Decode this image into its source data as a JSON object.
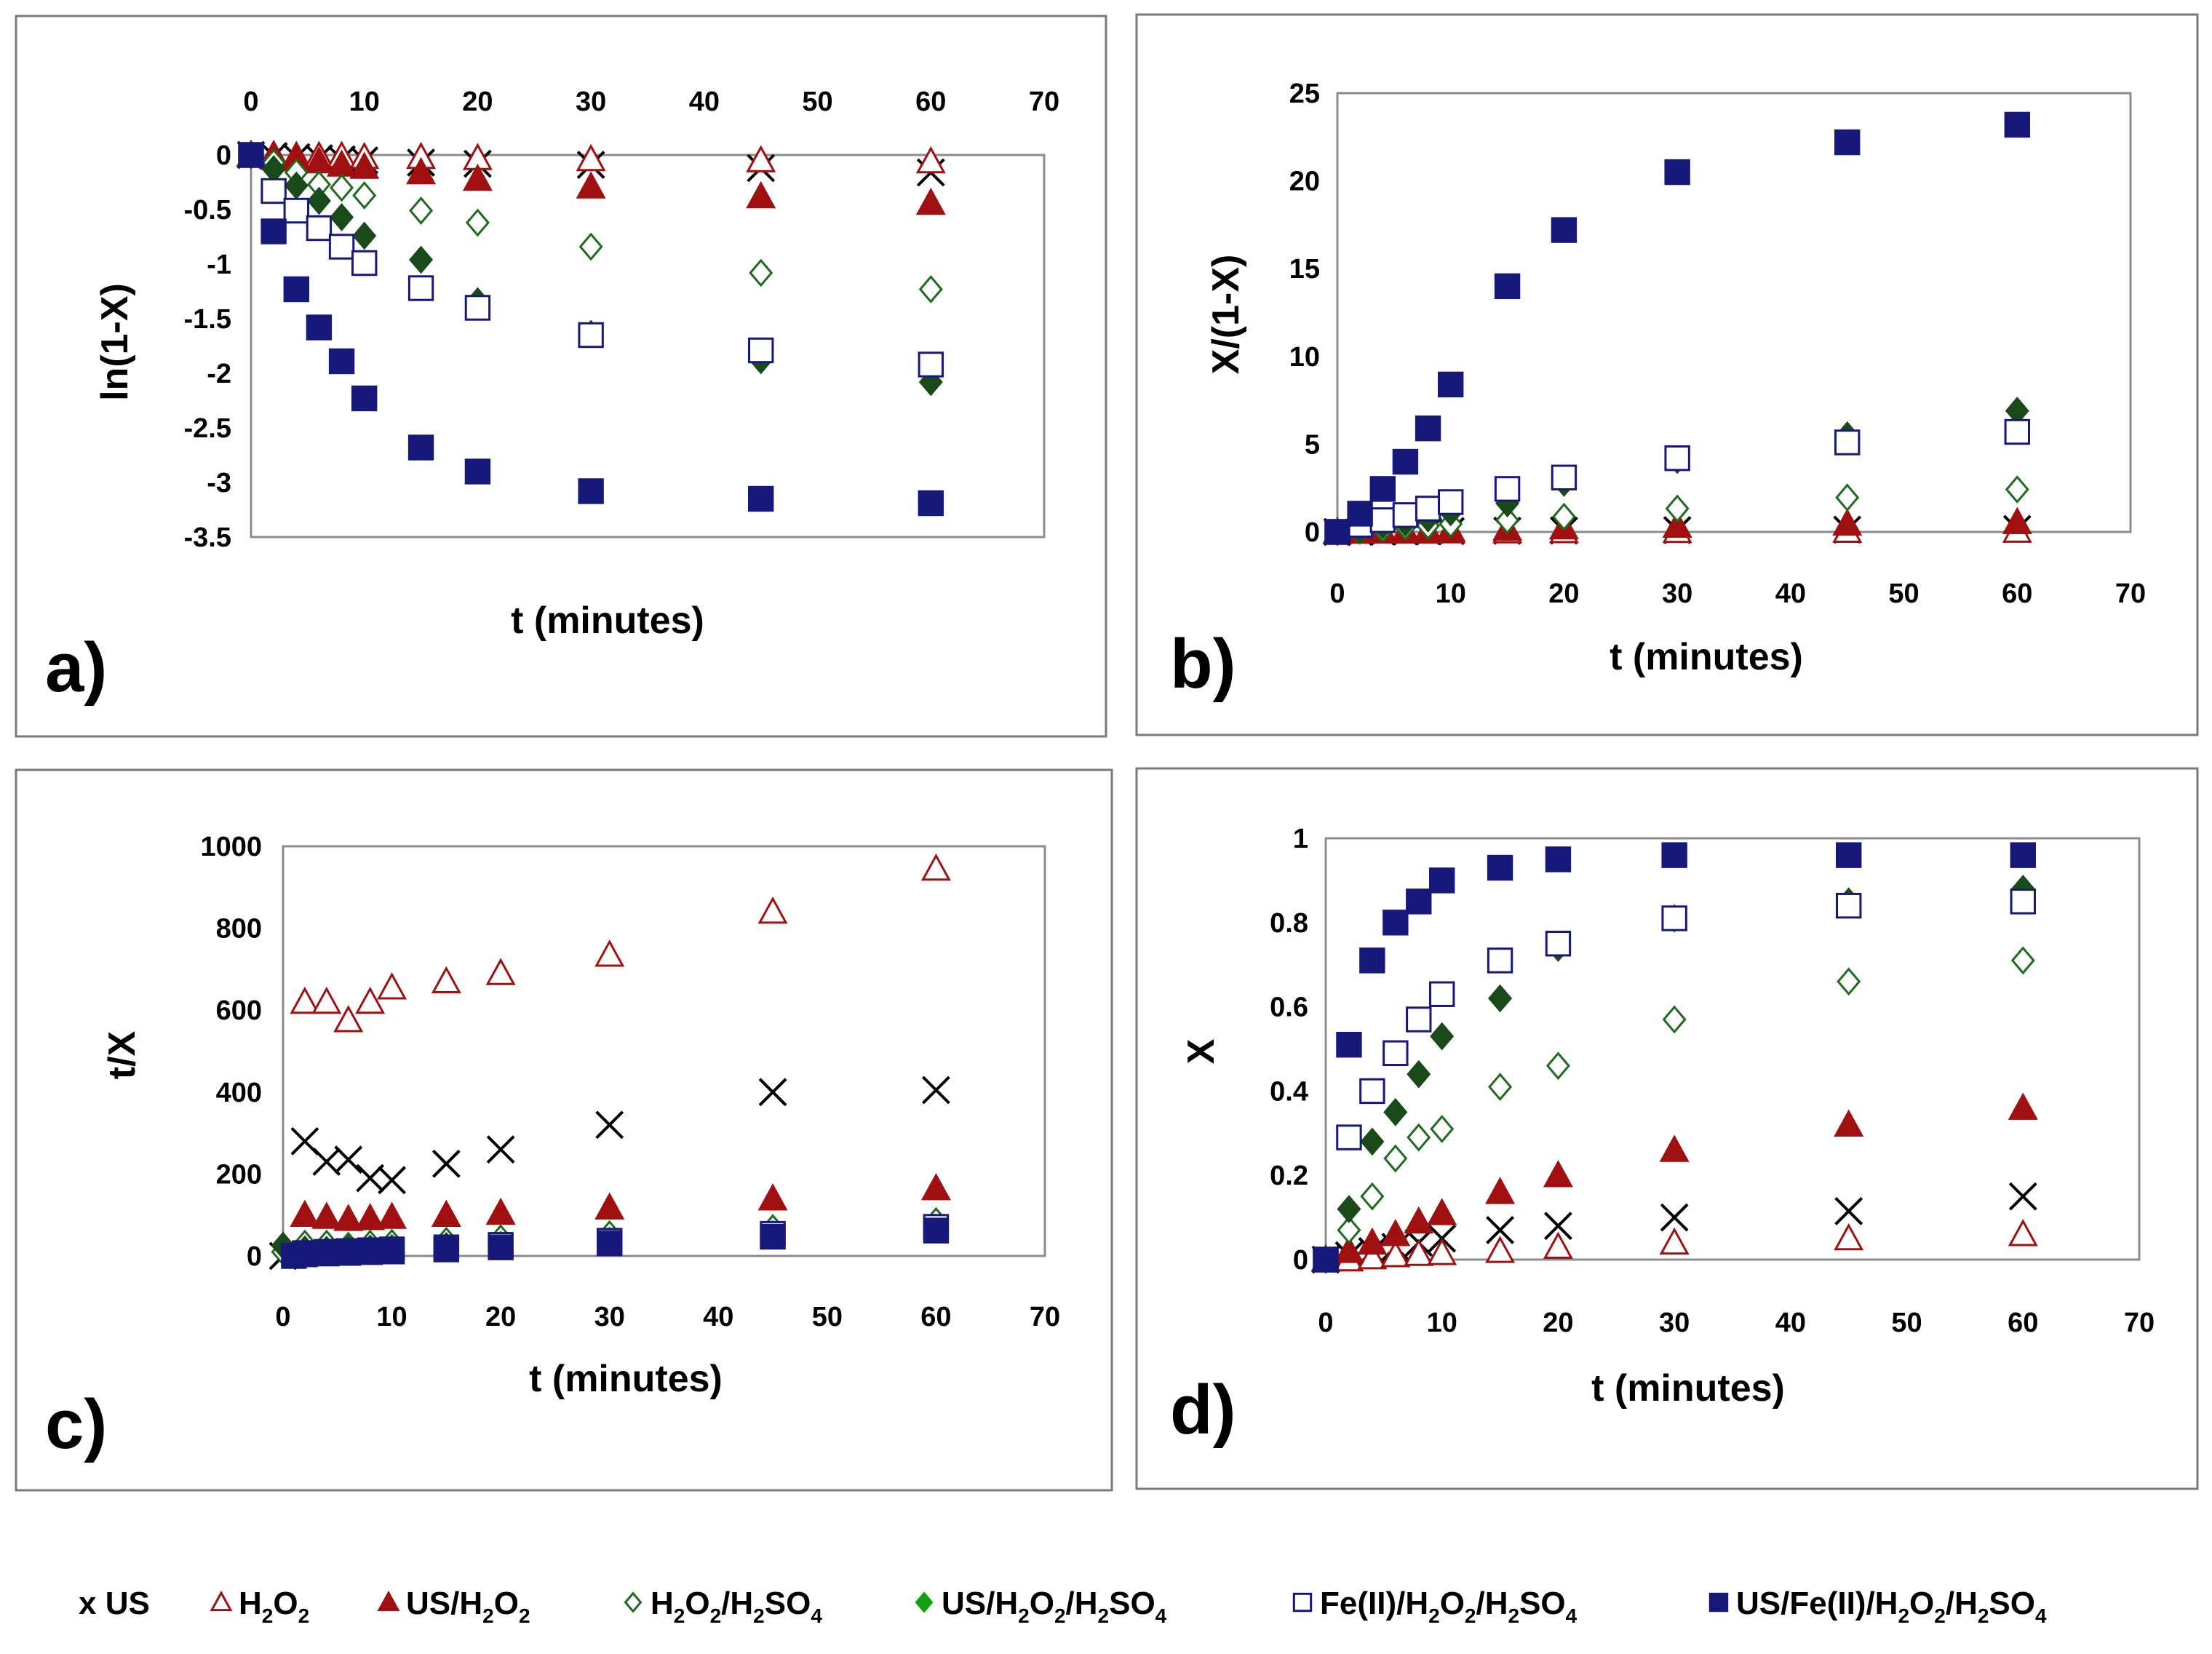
{
  "chart_data": [
    {
      "panel": "a)",
      "type": "scatter",
      "xlabel": "t (minutes)",
      "ylabel": "ln(1-X)",
      "xlim": [
        0,
        70
      ],
      "ylim": [
        -3.5,
        0
      ],
      "x_ticks": [
        0,
        10,
        20,
        30,
        40,
        50,
        60,
        70
      ],
      "y_ticks": [
        0,
        -0.5,
        -1,
        -1.5,
        -2,
        -2.5,
        -3,
        -3.5
      ],
      "x_axis_position": "top",
      "series": [
        {
          "key": "us",
          "x": [
            0,
            2,
            4,
            6,
            8,
            10,
            15,
            20,
            30,
            45,
            60
          ],
          "y": [
            0,
            -0.01,
            -0.02,
            -0.03,
            -0.04,
            -0.05,
            -0.07,
            -0.08,
            -0.09,
            -0.12,
            -0.16
          ]
        },
        {
          "key": "h2o2",
          "x": [
            0,
            2,
            4,
            6,
            8,
            10,
            15,
            20,
            30,
            45,
            60
          ],
          "y": [
            0,
            0,
            -0.01,
            -0.01,
            -0.01,
            -0.02,
            -0.02,
            -0.03,
            -0.04,
            -0.05,
            -0.06
          ]
        },
        {
          "key": "us_h2o2",
          "x": [
            0,
            2,
            4,
            6,
            8,
            10,
            15,
            20,
            30,
            45,
            60
          ],
          "y": [
            0,
            -0.02,
            -0.04,
            -0.06,
            -0.09,
            -0.11,
            -0.16,
            -0.22,
            -0.29,
            -0.38,
            -0.44
          ]
        },
        {
          "key": "h2o2_h2so4",
          "x": [
            0,
            2,
            4,
            6,
            8,
            10,
            15,
            20,
            30,
            45,
            60
          ],
          "y": [
            0,
            -0.07,
            -0.16,
            -0.27,
            -0.3,
            -0.37,
            -0.51,
            -0.62,
            -0.84,
            -1.08,
            -1.23
          ]
        },
        {
          "key": "us_h2o2_h2so4",
          "x": [
            0,
            2,
            4,
            6,
            8,
            10,
            15,
            20,
            30,
            45,
            60
          ],
          "y": [
            0,
            -0.13,
            -0.28,
            -0.42,
            -0.57,
            -0.74,
            -0.96,
            -1.34,
            -1.64,
            -1.88,
            -2.08
          ]
        },
        {
          "key": "fe_h2o2_h2so4",
          "x": [
            0,
            2,
            4,
            6,
            8,
            10,
            15,
            20,
            30,
            45,
            60
          ],
          "y": [
            0,
            -0.33,
            -0.51,
            -0.67,
            -0.84,
            -0.99,
            -1.22,
            -1.4,
            -1.65,
            -1.79,
            -1.92
          ]
        },
        {
          "key": "us_fe_h2o2_h2so4",
          "x": [
            0,
            2,
            4,
            6,
            8,
            10,
            15,
            20,
            30,
            45,
            60
          ],
          "y": [
            0,
            -0.7,
            -1.23,
            -1.58,
            -1.89,
            -2.23,
            -2.68,
            -2.9,
            -3.08,
            -3.15,
            -3.19
          ]
        }
      ]
    },
    {
      "panel": "b)",
      "type": "scatter",
      "xlabel": "t (minutes)",
      "ylabel": "X/(1-X)",
      "xlim": [
        0,
        70
      ],
      "ylim": [
        0,
        25
      ],
      "x_ticks": [
        0,
        10,
        20,
        30,
        40,
        50,
        60,
        70
      ],
      "y_ticks": [
        0,
        5,
        10,
        15,
        20,
        25
      ],
      "x_axis_position": "bottom",
      "series": [
        {
          "key": "us",
          "x": [
            0,
            2,
            4,
            6,
            8,
            10,
            15,
            20,
            30,
            45,
            60
          ],
          "y": [
            0,
            0.01,
            0.02,
            0.03,
            0.04,
            0.05,
            0.07,
            0.08,
            0.1,
            0.13,
            0.17
          ]
        },
        {
          "key": "h2o2",
          "x": [
            0,
            2,
            4,
            6,
            8,
            10,
            15,
            20,
            30,
            45,
            60
          ],
          "y": [
            0,
            0,
            0.01,
            0.01,
            0.01,
            0.02,
            0.02,
            0.03,
            0.04,
            0.05,
            0.06
          ]
        },
        {
          "key": "us_h2o2",
          "x": [
            0,
            2,
            4,
            6,
            8,
            10,
            15,
            20,
            30,
            45,
            60
          ],
          "y": [
            0,
            0.02,
            0.04,
            0.06,
            0.09,
            0.12,
            0.17,
            0.25,
            0.34,
            0.46,
            0.55
          ]
        },
        {
          "key": "h2o2_h2so4",
          "x": [
            0,
            2,
            4,
            6,
            8,
            10,
            15,
            20,
            30,
            45,
            60
          ],
          "y": [
            0,
            0.07,
            0.17,
            0.31,
            0.35,
            0.45,
            0.67,
            0.86,
            1.33,
            1.96,
            2.42
          ]
        },
        {
          "key": "us_h2o2_h2so4",
          "x": [
            0,
            2,
            4,
            6,
            8,
            10,
            15,
            20,
            30,
            45,
            60
          ],
          "y": [
            0,
            0.14,
            0.38,
            0.53,
            0.77,
            1.12,
            1.63,
            2.8,
            4.1,
            5.5,
            6.9
          ]
        },
        {
          "key": "fe_h2o2_h2so4",
          "x": [
            0,
            2,
            4,
            6,
            8,
            10,
            15,
            20,
            30,
            45,
            60
          ],
          "y": [
            0,
            0.4,
            0.67,
            0.96,
            1.33,
            1.7,
            2.45,
            3.1,
            4.2,
            5.1,
            5.7
          ]
        },
        {
          "key": "us_fe_h2o2_h2so4",
          "x": [
            0,
            2,
            4,
            6,
            8,
            10,
            15,
            20,
            30,
            45,
            60
          ],
          "y": [
            0,
            1.04,
            2.45,
            4.0,
            5.9,
            8.4,
            14.0,
            17.2,
            20.5,
            22.2,
            23.2
          ]
        }
      ]
    },
    {
      "panel": "c)",
      "type": "scatter",
      "xlabel": "t (minutes)",
      "ylabel": "t/X",
      "xlim": [
        0,
        70
      ],
      "ylim": [
        0,
        1000
      ],
      "x_ticks": [
        0,
        10,
        20,
        30,
        40,
        50,
        60,
        70
      ],
      "y_ticks": [
        0,
        200,
        400,
        600,
        800,
        1000
      ],
      "x_axis_position": "bottom",
      "series": [
        {
          "key": "us",
          "x": [
            0,
            2,
            4,
            6,
            8,
            10,
            15,
            20,
            30,
            45,
            60
          ],
          "y": [
            0,
            280,
            230,
            235,
            190,
            185,
            225,
            260,
            320,
            400,
            405
          ]
        },
        {
          "key": "h2o2",
          "x": [
            2,
            4,
            6,
            8,
            10,
            15,
            20,
            30,
            45,
            60
          ],
          "y": [
            620,
            620,
            575,
            620,
            655,
            670,
            690,
            735,
            840,
            945
          ]
        },
        {
          "key": "us_h2o2",
          "x": [
            2,
            4,
            6,
            8,
            10,
            15,
            20,
            30,
            45,
            60
          ],
          "y": [
            100,
            95,
            90,
            92,
            95,
            100,
            105,
            118,
            140,
            165
          ]
        },
        {
          "key": "h2o2_h2so4",
          "x": [
            0,
            2,
            4,
            6,
            8,
            10,
            15,
            20,
            30,
            45,
            60
          ],
          "y": [
            10,
            30,
            30,
            25,
            30,
            32,
            37,
            43,
            53,
            68,
            85
          ]
        },
        {
          "key": "us_h2o2_h2so4",
          "x": [
            0,
            2,
            4,
            6,
            8,
            10,
            15,
            20,
            30,
            45,
            60
          ],
          "y": [
            25,
            16,
            15,
            17,
            18,
            19,
            24,
            27,
            37,
            53,
            69
          ]
        },
        {
          "key": "fe_h2o2_h2so4",
          "x": [
            2,
            4,
            6,
            8,
            10,
            15,
            20,
            30,
            45,
            60
          ],
          "y": [
            7,
            10,
            12,
            14,
            16,
            21,
            27,
            37,
            54,
            71
          ]
        },
        {
          "key": "us_fe_h2o2_h2so4",
          "x": [
            1,
            2,
            4,
            6,
            8,
            10,
            15,
            20,
            30,
            45,
            60
          ],
          "y": [
            0,
            4,
            6,
            7.5,
            9.5,
            11,
            16,
            21,
            31,
            47,
            62
          ]
        }
      ]
    },
    {
      "panel": "d)",
      "type": "scatter",
      "xlabel": "t (minutes)",
      "ylabel": "X",
      "xlim": [
        0,
        70
      ],
      "ylim": [
        0,
        1
      ],
      "x_ticks": [
        0,
        10,
        20,
        30,
        40,
        50,
        60,
        70
      ],
      "y_ticks": [
        0,
        0.2,
        0.4,
        0.6,
        0.8,
        1
      ],
      "x_axis_position": "bottom",
      "series": [
        {
          "key": "us",
          "x": [
            0,
            2,
            4,
            6,
            8,
            10,
            15,
            20,
            30,
            45,
            60
          ],
          "y": [
            0,
            0.01,
            0.02,
            0.03,
            0.04,
            0.05,
            0.07,
            0.08,
            0.1,
            0.115,
            0.15
          ]
        },
        {
          "key": "h2o2",
          "x": [
            0,
            2,
            4,
            6,
            8,
            10,
            15,
            20,
            30,
            45,
            60
          ],
          "y": [
            0,
            0,
            0.005,
            0.01,
            0.013,
            0.015,
            0.02,
            0.03,
            0.04,
            0.05,
            0.06
          ]
        },
        {
          "key": "us_h2o2",
          "x": [
            0,
            2,
            4,
            6,
            8,
            10,
            15,
            20,
            30,
            45,
            60
          ],
          "y": [
            0,
            0.02,
            0.04,
            0.06,
            0.09,
            0.11,
            0.16,
            0.2,
            0.26,
            0.32,
            0.36
          ]
        },
        {
          "key": "h2o2_h2so4",
          "x": [
            0,
            2,
            4,
            6,
            8,
            10,
            15,
            20,
            30,
            45,
            60
          ],
          "y": [
            0,
            0.07,
            0.15,
            0.24,
            0.29,
            0.31,
            0.41,
            0.46,
            0.57,
            0.66,
            0.71
          ]
        },
        {
          "key": "us_h2o2_h2so4",
          "x": [
            0,
            2,
            4,
            6,
            8,
            10,
            15,
            20,
            30,
            45,
            60
          ],
          "y": [
            0,
            0.12,
            0.28,
            0.35,
            0.44,
            0.53,
            0.62,
            0.74,
            0.81,
            0.85,
            0.88
          ]
        },
        {
          "key": "fe_h2o2_h2so4",
          "x": [
            0,
            2,
            4,
            6,
            8,
            10,
            15,
            20,
            30,
            45,
            60
          ],
          "y": [
            0,
            0.29,
            0.4,
            0.49,
            0.57,
            0.63,
            0.71,
            0.75,
            0.81,
            0.84,
            0.85
          ]
        },
        {
          "key": "us_fe_h2o2_h2so4",
          "x": [
            0,
            2,
            4,
            6,
            8,
            10,
            15,
            20,
            30,
            45,
            60
          ],
          "y": [
            0,
            0.51,
            0.71,
            0.8,
            0.85,
            0.9,
            0.93,
            0.95,
            0.96,
            0.96,
            0.96
          ]
        }
      ]
    }
  ],
  "legend": [
    {
      "key": "us",
      "marker": "x",
      "color": "#000000",
      "label": "US"
    },
    {
      "key": "h2o2",
      "marker": "triangle-open",
      "color": "#a01010",
      "parts": [
        [
          "H",
          ""
        ],
        [
          "2",
          "sub"
        ],
        [
          "O",
          ""
        ],
        [
          "2",
          "sub"
        ]
      ]
    },
    {
      "key": "us_h2o2",
      "marker": "triangle-filled",
      "color": "#a01010",
      "parts": [
        [
          "US/H",
          ""
        ],
        [
          "2",
          "sub"
        ],
        [
          "O",
          ""
        ],
        [
          "2",
          "sub"
        ]
      ]
    },
    {
      "key": "h2o2_h2so4",
      "marker": "diamond-open",
      "color": "#1e6b1e",
      "parts": [
        [
          "H",
          ""
        ],
        [
          "2",
          "sub"
        ],
        [
          "O",
          ""
        ],
        [
          "2",
          "sub"
        ],
        [
          "/H",
          ""
        ],
        [
          "2",
          "sub"
        ],
        [
          "SO",
          ""
        ],
        [
          "4",
          "sub"
        ]
      ]
    },
    {
      "key": "us_h2o2_h2so4",
      "marker": "diamond-filled",
      "color": "#1a4a1a",
      "legend_color": "#11a011",
      "parts": [
        [
          "US/H",
          ""
        ],
        [
          "2",
          "sub"
        ],
        [
          "O",
          ""
        ],
        [
          "2",
          "sub"
        ],
        [
          "/H",
          ""
        ],
        [
          "2",
          "sub"
        ],
        [
          "SO",
          ""
        ],
        [
          "4",
          "sub"
        ]
      ]
    },
    {
      "key": "fe_h2o2_h2so4",
      "marker": "square-open",
      "color": "#16197a",
      "parts": [
        [
          "Fe(II)/H",
          ""
        ],
        [
          "2",
          "sub"
        ],
        [
          "O",
          ""
        ],
        [
          "2",
          "sub"
        ],
        [
          "/H",
          ""
        ],
        [
          "2",
          "sub"
        ],
        [
          "SO",
          ""
        ],
        [
          "4",
          "sub"
        ]
      ]
    },
    {
      "key": "us_fe_h2o2_h2so4",
      "marker": "square-filled",
      "color": "#16197a",
      "parts": [
        [
          "US/Fe(II)/H",
          ""
        ],
        [
          "2",
          "sub"
        ],
        [
          "O",
          ""
        ],
        [
          "2",
          "sub"
        ],
        [
          "/H",
          ""
        ],
        [
          "2",
          "sub"
        ],
        [
          "SO",
          ""
        ],
        [
          "4",
          "sub"
        ]
      ]
    }
  ]
}
